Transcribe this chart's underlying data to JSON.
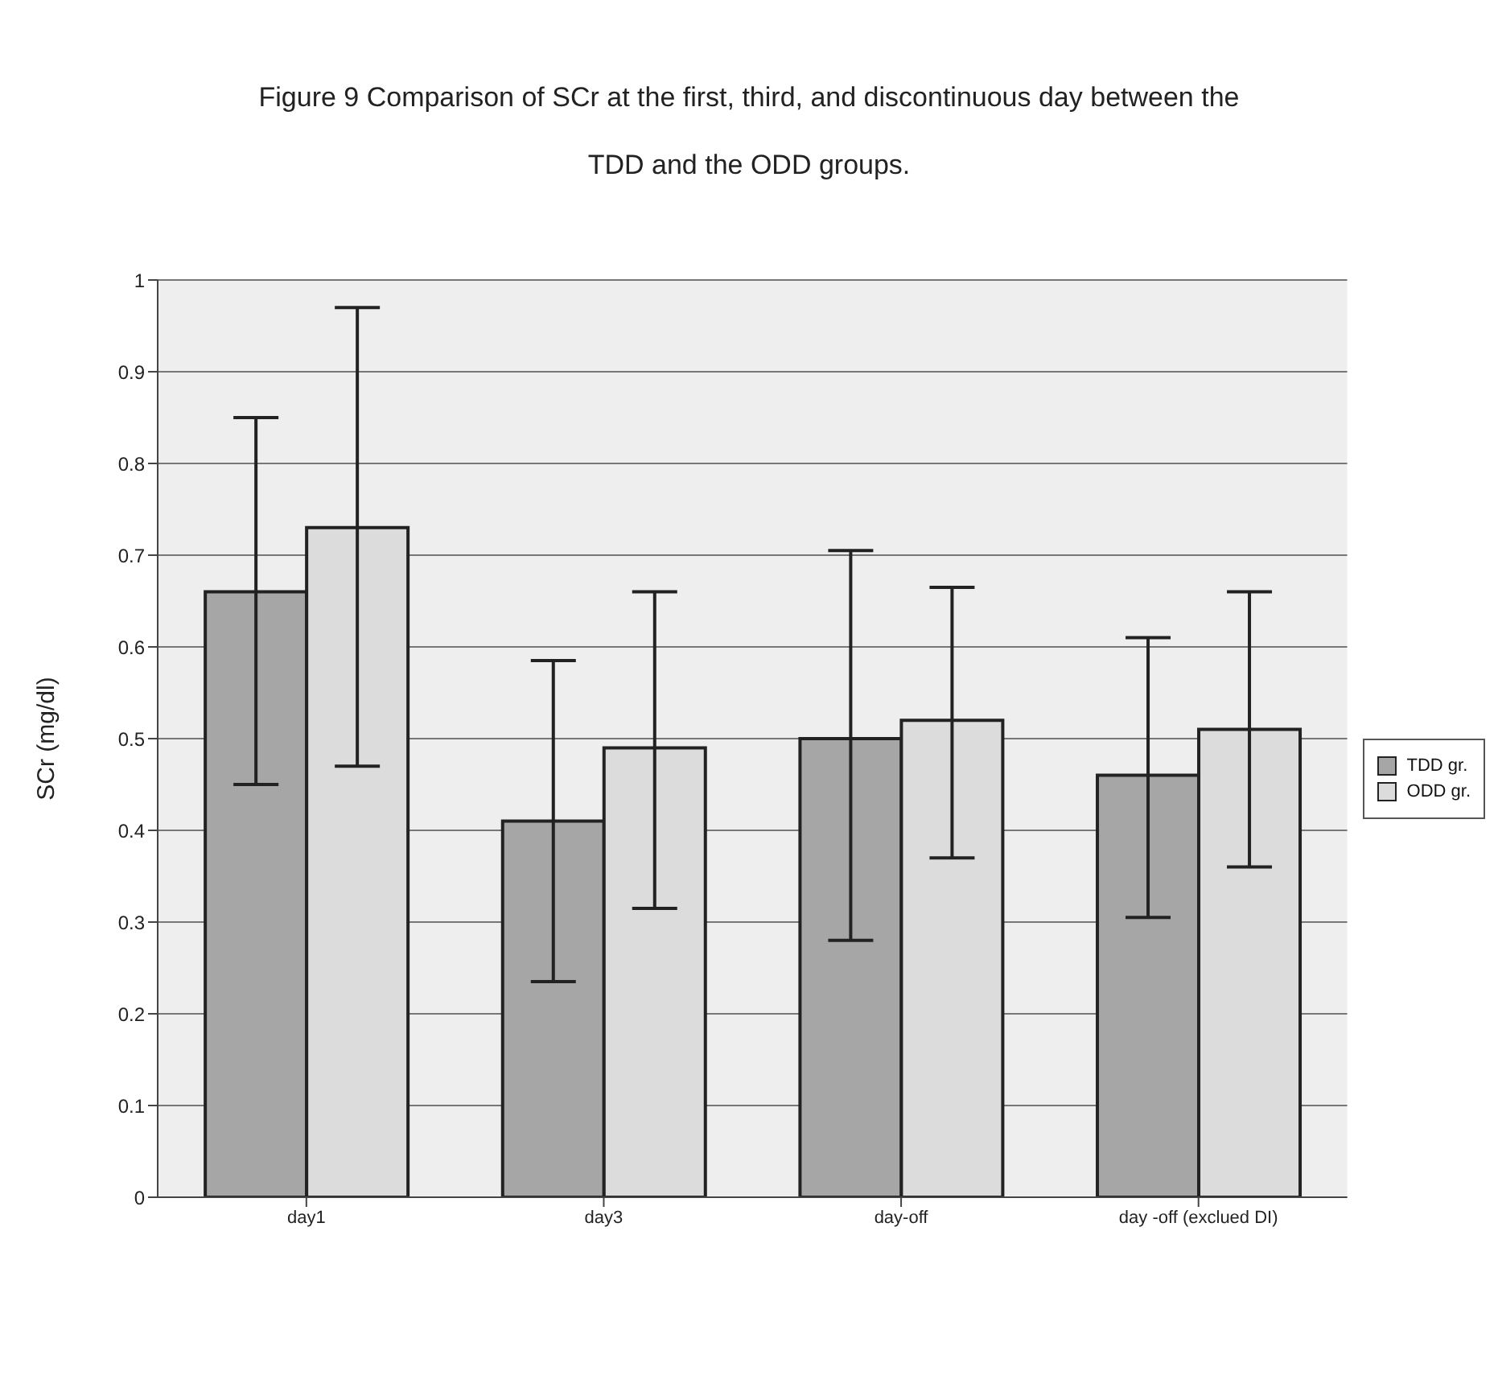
{
  "chart_data": {
    "type": "bar",
    "title": "Figure 9 Comparison of SCr at the first, third, and discontinuous day between the TDD and the ODD groups.",
    "ylabel": "SCr (mg/dl)",
    "categories": [
      "day1",
      "day3",
      "day-off",
      "day -off (exclued DI)"
    ],
    "series": [
      {
        "name": "TDD gr.",
        "color": "#a6a6a6",
        "values": [
          0.66,
          0.41,
          0.5,
          0.46
        ],
        "errors": [
          [
            0.45,
            0.85
          ],
          [
            0.235,
            0.585
          ],
          [
            0.28,
            0.705
          ],
          [
            0.305,
            0.61
          ]
        ]
      },
      {
        "name": "ODD gr.",
        "color": "#dcdcdc",
        "values": [
          0.73,
          0.49,
          0.52,
          0.51
        ],
        "errors": [
          [
            0.47,
            0.97
          ],
          [
            0.315,
            0.66
          ],
          [
            0.37,
            0.665
          ],
          [
            0.36,
            0.66
          ]
        ]
      }
    ],
    "ylim": [
      0,
      1
    ],
    "yticks": [
      0,
      0.1,
      0.2,
      0.3,
      0.4,
      0.5,
      0.6,
      0.7,
      0.8,
      0.9,
      1
    ],
    "grid": "y",
    "legend": "right"
  }
}
